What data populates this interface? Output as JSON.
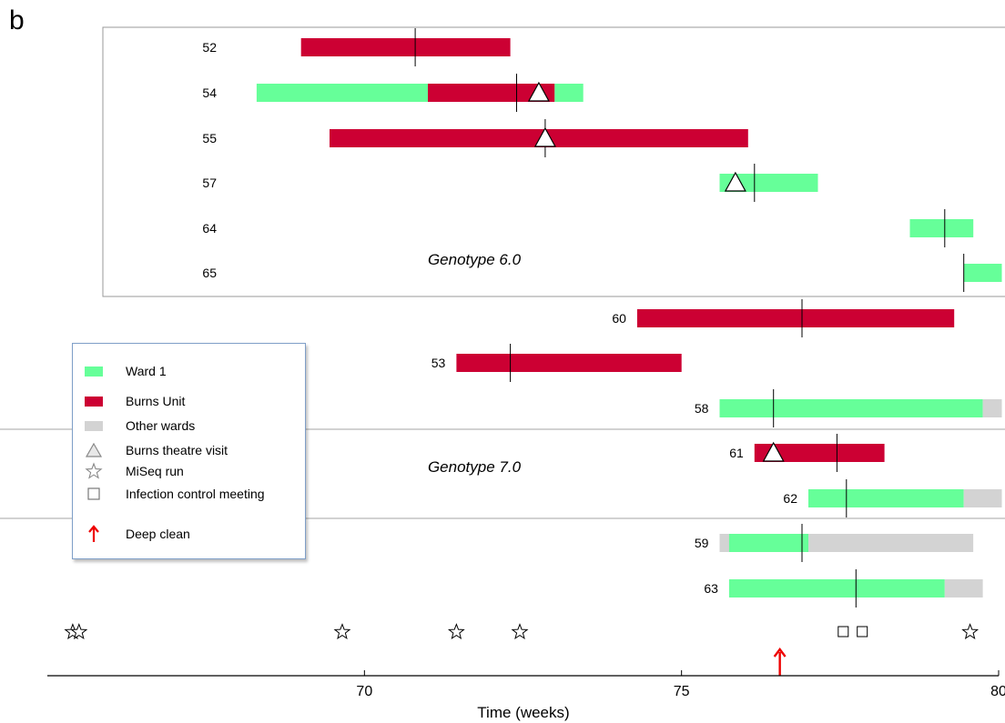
{
  "panel_label": "b",
  "colors": {
    "ward1": "#66ff99",
    "burns": "#cc0033",
    "other": "#d3d3d3",
    "tick": "#000000",
    "deep_clean": "#ee0000",
    "group_box": "#999999"
  },
  "chart_data": {
    "type": "timeline",
    "xlabel": "Time (weeks)",
    "xlim": [
      65,
      80
    ],
    "x_ticks": [
      70,
      75,
      80
    ],
    "groups": [
      {
        "label": "Genotype 6.0",
        "patients": [
          "52",
          "54",
          "55",
          "57",
          "64",
          "65"
        ]
      },
      {
        "label": "Genotype 7.0",
        "patients": [
          "58",
          "61",
          "62"
        ]
      }
    ],
    "patients": [
      {
        "id": "52",
        "segments": [
          {
            "ward": "burns",
            "start": 69.0,
            "end": 72.3
          }
        ],
        "tick": 70.8,
        "theatre": []
      },
      {
        "id": "54",
        "segments": [
          {
            "ward": "ward1",
            "start": 68.3,
            "end": 71.0
          },
          {
            "ward": "burns",
            "start": 71.0,
            "end": 73.0
          },
          {
            "ward": "ward1",
            "start": 73.0,
            "end": 73.45
          }
        ],
        "tick": 72.4,
        "theatre": [
          72.75
        ]
      },
      {
        "id": "55",
        "segments": [
          {
            "ward": "burns",
            "start": 69.45,
            "end": 76.05
          }
        ],
        "tick": 72.85,
        "theatre": [
          72.85
        ]
      },
      {
        "id": "57",
        "segments": [
          {
            "ward": "ward1",
            "start": 75.6,
            "end": 77.15
          }
        ],
        "tick": 76.15,
        "theatre": [
          75.85
        ]
      },
      {
        "id": "64",
        "segments": [
          {
            "ward": "ward1",
            "start": 78.6,
            "end": 79.6
          }
        ],
        "tick": 79.15,
        "theatre": []
      },
      {
        "id": "65",
        "segments": [
          {
            "ward": "ward1",
            "start": 79.45,
            "end": 80.05
          }
        ],
        "tick": 79.45,
        "theatre": []
      },
      {
        "id": "60",
        "segments": [
          {
            "ward": "burns",
            "start": 74.3,
            "end": 79.3
          }
        ],
        "tick": 76.9,
        "theatre": []
      },
      {
        "id": "53",
        "segments": [
          {
            "ward": "burns",
            "start": 71.45,
            "end": 75.0
          }
        ],
        "tick": 72.3,
        "theatre": []
      },
      {
        "id": "58",
        "segments": [
          {
            "ward": "ward1",
            "start": 75.6,
            "end": 79.75
          },
          {
            "ward": "other",
            "start": 79.75,
            "end": 80.05
          }
        ],
        "tick": 76.45,
        "theatre": []
      },
      {
        "id": "61",
        "segments": [
          {
            "ward": "burns",
            "start": 76.15,
            "end": 78.2
          }
        ],
        "tick": 77.45,
        "theatre": [
          76.45
        ]
      },
      {
        "id": "62",
        "segments": [
          {
            "ward": "ward1",
            "start": 77.0,
            "end": 79.45
          },
          {
            "ward": "other",
            "start": 79.45,
            "end": 80.05
          }
        ],
        "tick": 77.6,
        "theatre": []
      },
      {
        "id": "59",
        "segments": [
          {
            "ward": "other",
            "start": 75.6,
            "end": 75.75
          },
          {
            "ward": "ward1",
            "start": 75.75,
            "end": 77.0
          },
          {
            "ward": "other",
            "start": 77.0,
            "end": 79.6
          }
        ],
        "tick": 76.9,
        "theatre": []
      },
      {
        "id": "63",
        "segments": [
          {
            "ward": "ward1",
            "start": 75.75,
            "end": 79.15
          },
          {
            "ward": "other",
            "start": 79.15,
            "end": 79.75
          }
        ],
        "tick": 77.75,
        "theatre": []
      }
    ],
    "miseq_runs": [
      65.4,
      65.5,
      69.65,
      71.45,
      72.45,
      79.55
    ],
    "infection_control_meetings": [
      77.55,
      77.85
    ],
    "deep_clean": [
      76.55
    ]
  },
  "legend": {
    "items": [
      {
        "key": "ward1",
        "label": "Ward 1"
      },
      {
        "key": "burns",
        "label": "Burns Unit"
      },
      {
        "key": "other",
        "label": "Other wards"
      },
      {
        "key": "theatre",
        "label": "Burns theatre visit"
      },
      {
        "key": "miseq",
        "label": "MiSeq run"
      },
      {
        "key": "meeting",
        "label": "Infection control meeting"
      },
      {
        "key": "deep_clean",
        "label": "Deep clean"
      }
    ]
  }
}
